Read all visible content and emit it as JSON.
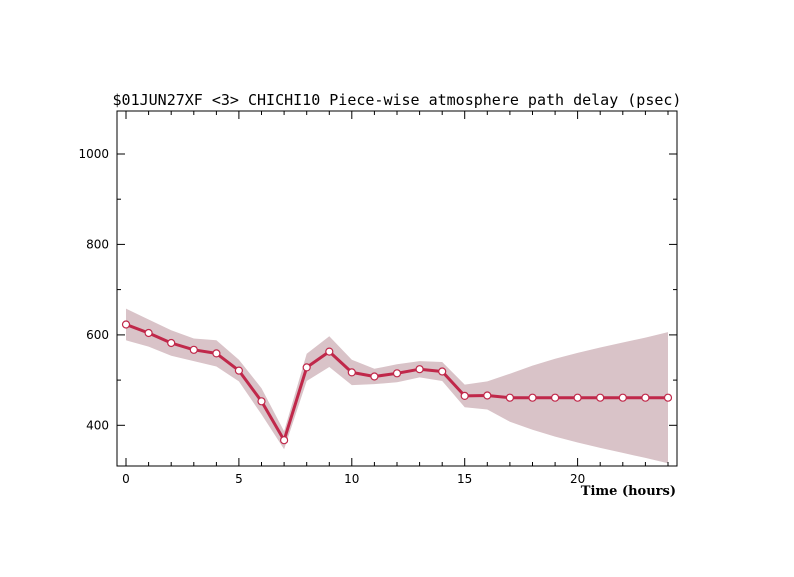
{
  "chart_data": {
    "type": "line",
    "title": "$01JUN27XF <3>  CHICHI10  Piece-wise atmosphere path delay (psec)",
    "xlabel": "Time (hours)",
    "ylabel": "",
    "xlim": [
      -0.4,
      24.4
    ],
    "ylim": [
      310,
      1095
    ],
    "x_ticks": [
      0,
      5,
      10,
      15,
      20
    ],
    "y_ticks": [
      400,
      600,
      800,
      1000
    ],
    "x_minor_step": 1,
    "y_minor_step": 100,
    "grid": false,
    "colors": {
      "line": "#c0284a",
      "band": "#d9c3c8",
      "marker_fill": "#ffffff"
    },
    "series": [
      {
        "x": [
          0,
          1,
          2,
          3,
          4,
          5,
          6,
          7,
          8,
          9,
          10,
          11,
          12,
          13,
          14,
          15,
          16,
          17,
          18,
          19,
          20,
          21,
          22,
          23,
          24
        ],
        "values": [
          623,
          604,
          582,
          567,
          559,
          521,
          453,
          367,
          528,
          563,
          517,
          508,
          515,
          524,
          519,
          465,
          466,
          461,
          461,
          461,
          461,
          461,
          461,
          461,
          461
        ],
        "upper": [
          658,
          634,
          610,
          592,
          588,
          545,
          482,
          387,
          558,
          597,
          545,
          525,
          535,
          542,
          540,
          490,
          497,
          514,
          532,
          547,
          560,
          572,
          583,
          594,
          606
        ],
        "lower": [
          588,
          574,
          554,
          542,
          530,
          497,
          424,
          347,
          498,
          529,
          489,
          491,
          495,
          506,
          498,
          440,
          435,
          408,
          390,
          375,
          362,
          350,
          339,
          328,
          316
        ]
      }
    ]
  }
}
